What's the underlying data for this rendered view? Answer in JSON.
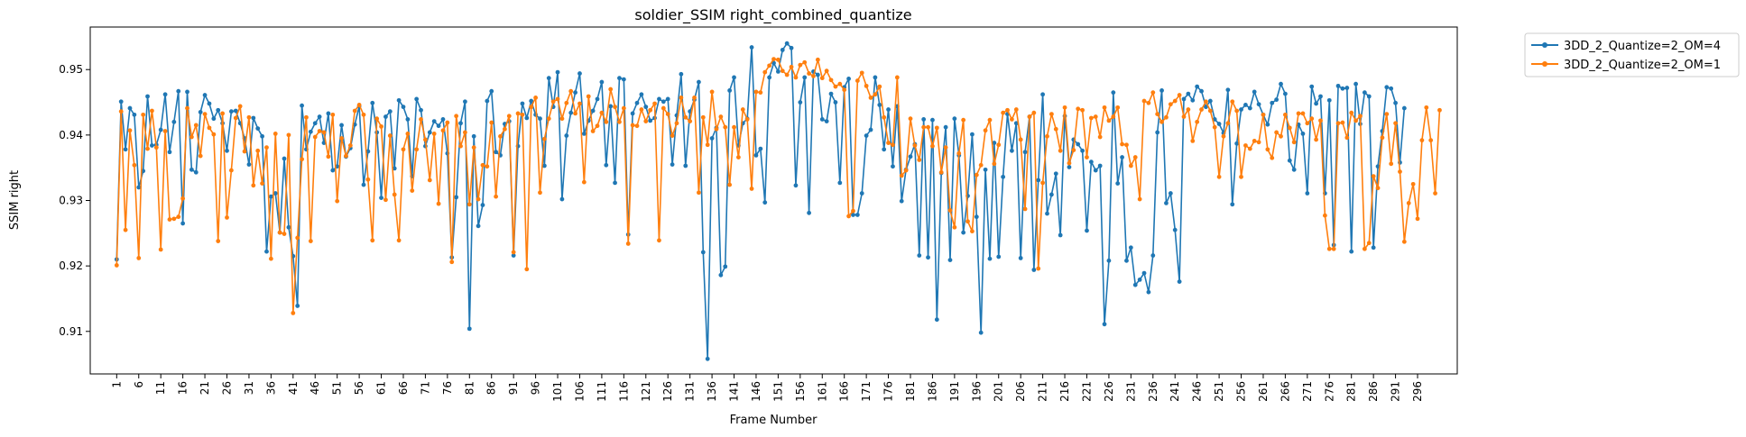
{
  "chart_data": {
    "type": "line",
    "title": "soldier_SSIM right_combined_quantize",
    "xlabel": "Frame Number",
    "ylabel": "SSIM right",
    "xlim": [
      -5,
      305
    ],
    "ylim": [
      0.9035,
      0.9565
    ],
    "legend_placement": "outside-upper-right",
    "grid": false,
    "x_ticks": [
      1,
      6,
      11,
      16,
      21,
      26,
      31,
      36,
      41,
      46,
      51,
      56,
      61,
      66,
      71,
      76,
      81,
      86,
      91,
      96,
      101,
      106,
      111,
      116,
      121,
      126,
      131,
      136,
      141,
      146,
      151,
      156,
      161,
      166,
      171,
      176,
      181,
      186,
      191,
      196,
      201,
      206,
      211,
      216,
      221,
      226,
      231,
      236,
      241,
      246,
      251,
      256,
      261,
      266,
      271,
      276,
      281,
      286,
      291,
      296
    ],
    "y_ticks": [
      0.91,
      0.92,
      0.93,
      0.94,
      0.95
    ],
    "x_start": 1,
    "series": [
      {
        "name": "3DD_2_Quantize=2_OM=4",
        "color": "#1f77b4",
        "values": [
          0.921,
          0.9451,
          0.9378,
          0.9441,
          0.9431,
          0.932,
          0.9345,
          0.9459,
          0.9384,
          0.9385,
          0.9408,
          0.9462,
          0.9374,
          0.942,
          0.9467,
          0.9265,
          0.9466,
          0.9347,
          0.9343,
          0.9435,
          0.9461,
          0.9448,
          0.9425,
          0.9438,
          0.9418,
          0.9376,
          0.9436,
          0.9437,
          0.9418,
          0.9395,
          0.9355,
          0.9426,
          0.941,
          0.9398,
          0.9222,
          0.9306,
          0.9311,
          0.9251,
          0.9364,
          0.9259,
          0.9215,
          0.9139,
          0.9445,
          0.9378,
          0.9405,
          0.9418,
          0.9428,
          0.9388,
          0.9433,
          0.9346,
          0.9352,
          0.9415,
          0.9367,
          0.938,
          0.9416,
          0.9444,
          0.9324,
          0.9375,
          0.9449,
          0.9404,
          0.9304,
          0.9428,
          0.9436,
          0.9349,
          0.9453,
          0.9443,
          0.9424,
          0.9337,
          0.9455,
          0.9438,
          0.9383,
          0.9404,
          0.9421,
          0.9414,
          0.9424,
          0.9372,
          0.9213,
          0.9305,
          0.9418,
          0.9451,
          0.9104,
          0.9398,
          0.9261,
          0.9293,
          0.9452,
          0.9467,
          0.9374,
          0.9369,
          0.9417,
          0.9421,
          0.9216,
          0.9383,
          0.9448,
          0.9426,
          0.9452,
          0.9431,
          0.9425,
          0.9353,
          0.9487,
          0.9443,
          0.9496,
          0.9302,
          0.9399,
          0.9434,
          0.9465,
          0.9494,
          0.9402,
          0.9422,
          0.9437,
          0.9455,
          0.9481,
          0.9354,
          0.9444,
          0.9327,
          0.9487,
          0.9485,
          0.9248,
          0.9433,
          0.9449,
          0.9462,
          0.9443,
          0.9422,
          0.9426,
          0.9455,
          0.9451,
          0.9455,
          0.9355,
          0.943,
          0.9493,
          0.9353,
          0.9436,
          0.9454,
          0.9481,
          0.9221,
          0.9058,
          0.9395,
          0.9411,
          0.9186,
          0.9199,
          0.9468,
          0.9488,
          0.9384,
          0.9418,
          0.9425,
          0.9534,
          0.9369,
          0.9379,
          0.9297,
          0.9488,
          0.951,
          0.9497,
          0.953,
          0.954,
          0.9533,
          0.9323,
          0.945,
          0.9488,
          0.9281,
          0.9497,
          0.9492,
          0.9424,
          0.9421,
          0.9463,
          0.945,
          0.9327,
          0.9473,
          0.9486,
          0.9278,
          0.9278,
          0.9311,
          0.9399,
          0.9408,
          0.9488,
          0.9446,
          0.9378,
          0.9439,
          0.9352,
          0.9444,
          0.9299,
          0.9347,
          0.9367,
          0.9386,
          0.9216,
          0.9424,
          0.9213,
          0.9423,
          0.9118,
          0.9342,
          0.9412,
          0.9209,
          0.9425,
          0.9369,
          0.9251,
          0.9307,
          0.9401,
          0.9275,
          0.9098,
          0.9347,
          0.9211,
          0.9388,
          0.9214,
          0.9336,
          0.9432,
          0.9376,
          0.9418,
          0.9212,
          0.9374,
          0.9428,
          0.9194,
          0.9331,
          0.9462,
          0.928,
          0.9309,
          0.9341,
          0.9247,
          0.9429,
          0.9351,
          0.9393,
          0.9386,
          0.9376,
          0.9254,
          0.9359,
          0.9346,
          0.9353,
          0.9111,
          0.9208,
          0.9465,
          0.9326,
          0.9366,
          0.9208,
          0.9228,
          0.9171,
          0.9179,
          0.9189,
          0.916,
          0.9216,
          0.9404,
          0.9468,
          0.9296,
          0.9311,
          0.9255,
          0.9176,
          0.9455,
          0.9463,
          0.9453,
          0.9474,
          0.9467,
          0.9443,
          0.9452,
          0.9424,
          0.9417,
          0.9403,
          0.9469,
          0.9294,
          0.9387,
          0.9439,
          0.9446,
          0.9441,
          0.9466,
          0.9447,
          0.9431,
          0.9416,
          0.9449,
          0.9454,
          0.9478,
          0.9463,
          0.9361,
          0.9347,
          0.9416,
          0.9402,
          0.9311,
          0.9474,
          0.9448,
          0.9459,
          0.9311,
          0.9453,
          0.9232,
          0.9475,
          0.9471,
          0.9472,
          0.9222,
          0.9478,
          0.9417,
          0.9465,
          0.9459,
          0.9228,
          0.9352,
          0.9406,
          0.9473,
          0.9471,
          0.9449,
          0.9358,
          0.9441
        ]
      },
      {
        "name": "3DD_2_Quantize=2_OM=1",
        "color": "#ff7f0e",
        "values": [
          0.9201,
          0.9436,
          0.9255,
          0.9407,
          0.9354,
          0.9212,
          0.9431,
          0.9379,
          0.9437,
          0.9381,
          0.9225,
          0.9406,
          0.9271,
          0.9272,
          0.9275,
          0.9303,
          0.9441,
          0.9397,
          0.9415,
          0.9368,
          0.9432,
          0.9411,
          0.9401,
          0.9238,
          0.9433,
          0.9274,
          0.9346,
          0.9426,
          0.9444,
          0.9375,
          0.9427,
          0.9323,
          0.9376,
          0.9326,
          0.9381,
          0.9211,
          0.9402,
          0.9251,
          0.9249,
          0.94,
          0.9128,
          0.9243,
          0.9363,
          0.9427,
          0.9238,
          0.9397,
          0.9406,
          0.9404,
          0.9367,
          0.9431,
          0.9299,
          0.9395,
          0.9368,
          0.9384,
          0.9437,
          0.9446,
          0.9431,
          0.9332,
          0.9239,
          0.9425,
          0.9413,
          0.9301,
          0.9399,
          0.9309,
          0.9239,
          0.9378,
          0.9402,
          0.9315,
          0.9378,
          0.9424,
          0.9393,
          0.9331,
          0.9402,
          0.9295,
          0.9407,
          0.9419,
          0.9206,
          0.9429,
          0.9383,
          0.9404,
          0.9294,
          0.9381,
          0.9302,
          0.9354,
          0.9352,
          0.9419,
          0.9306,
          0.9398,
          0.9409,
          0.9429,
          0.9221,
          0.9433,
          0.9431,
          0.9195,
          0.9443,
          0.9457,
          0.9312,
          0.9394,
          0.9425,
          0.9451,
          0.9455,
          0.9425,
          0.9449,
          0.9467,
          0.9433,
          0.9448,
          0.9328,
          0.9459,
          0.9406,
          0.9414,
          0.9434,
          0.942,
          0.947,
          0.9443,
          0.942,
          0.9441,
          0.9234,
          0.9415,
          0.9414,
          0.9439,
          0.9421,
          0.9438,
          0.9448,
          0.9239,
          0.9441,
          0.9432,
          0.9399,
          0.9418,
          0.9457,
          0.9427,
          0.9421,
          0.9457,
          0.9312,
          0.9427,
          0.9385,
          0.9466,
          0.9409,
          0.9428,
          0.9412,
          0.9324,
          0.9412,
          0.9366,
          0.9439,
          0.9424,
          0.9318,
          0.9466,
          0.9465,
          0.9496,
          0.9506,
          0.9516,
          0.9515,
          0.9498,
          0.9492,
          0.9504,
          0.9488,
          0.9507,
          0.9511,
          0.9494,
          0.949,
          0.9515,
          0.9487,
          0.9498,
          0.9484,
          0.9474,
          0.9478,
          0.9469,
          0.9276,
          0.9284,
          0.9483,
          0.9495,
          0.9475,
          0.9457,
          0.9462,
          0.9474,
          0.9427,
          0.9388,
          0.9385,
          0.9488,
          0.9338,
          0.9346,
          0.9425,
          0.9384,
          0.9362,
          0.9412,
          0.9412,
          0.9383,
          0.9411,
          0.9343,
          0.9381,
          0.9285,
          0.9259,
          0.9372,
          0.9423,
          0.9268,
          0.9253,
          0.9339,
          0.9354,
          0.9407,
          0.9423,
          0.9356,
          0.9385,
          0.9434,
          0.9438,
          0.9424,
          0.9439,
          0.9393,
          0.9287,
          0.9428,
          0.9434,
          0.9196,
          0.9327,
          0.9398,
          0.9432,
          0.9409,
          0.9376,
          0.9442,
          0.9357,
          0.9377,
          0.944,
          0.9438,
          0.9366,
          0.9426,
          0.9428,
          0.9397,
          0.9442,
          0.9422,
          0.9428,
          0.9442,
          0.9386,
          0.9385,
          0.9353,
          0.9366,
          0.9302,
          0.9452,
          0.9449,
          0.9465,
          0.9432,
          0.942,
          0.9427,
          0.9447,
          0.9452,
          0.9461,
          0.9428,
          0.9439,
          0.9391,
          0.942,
          0.9439,
          0.9451,
          0.9437,
          0.9412,
          0.9336,
          0.9398,
          0.9418,
          0.9451,
          0.9437,
          0.9336,
          0.9384,
          0.9379,
          0.9391,
          0.9389,
          0.9431,
          0.9378,
          0.9365,
          0.9404,
          0.9398,
          0.9431,
          0.9411,
          0.9389,
          0.9433,
          0.9433,
          0.9418,
          0.9425,
          0.9393,
          0.9422,
          0.9277,
          0.9226,
          0.9226,
          0.9418,
          0.9419,
          0.9396,
          0.9434,
          0.9422,
          0.9429,
          0.9226,
          0.9235,
          0.9337,
          0.9319,
          0.9396,
          0.9432,
          0.9356,
          0.9418,
          0.9344,
          0.9237,
          0.9296,
          0.9325,
          0.9272,
          0.9392,
          0.9442,
          0.9392,
          0.9311,
          0.9438
        ]
      }
    ]
  }
}
